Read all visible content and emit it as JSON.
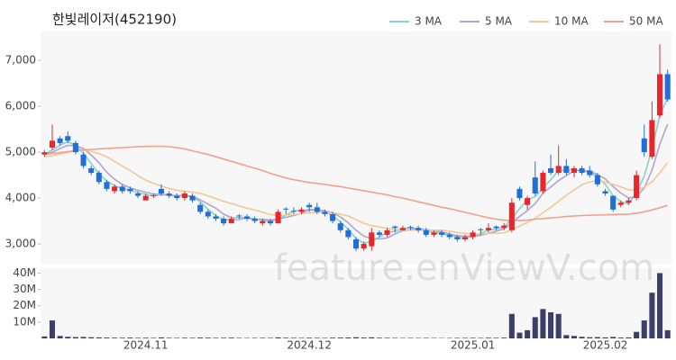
{
  "chart_data": {
    "type": "candlestick",
    "title": "한빛레이저(452190)",
    "watermark": "feature.enViewV.com",
    "categories": [
      null,
      null,
      null,
      null,
      null,
      null,
      null,
      null,
      null,
      null,
      null,
      null,
      null,
      "2024.11",
      null,
      null,
      null,
      null,
      null,
      null,
      null,
      null,
      null,
      null,
      null,
      null,
      null,
      null,
      null,
      null,
      null,
      null,
      null,
      null,
      "2024.12",
      null,
      null,
      null,
      null,
      null,
      null,
      null,
      null,
      null,
      null,
      null,
      null,
      null,
      null,
      null,
      null,
      null,
      null,
      null,
      null,
      "2025.01",
      null,
      null,
      null,
      null,
      null,
      null,
      null,
      null,
      null,
      null,
      null,
      null,
      null,
      null,
      null,
      null,
      "2025.02",
      null,
      null,
      null,
      null,
      null,
      null,
      null,
      null
    ],
    "up_color": "#e8262c",
    "down_color": "#1f6fd6",
    "ohlc": [
      [
        4950,
        5050,
        4900,
        5000
      ],
      [
        5100,
        5600,
        5050,
        5250
      ],
      [
        5300,
        5350,
        5150,
        5200
      ],
      [
        5350,
        5450,
        5200,
        5250
      ],
      [
        5200,
        5250,
        4950,
        5000
      ],
      [
        4950,
        5000,
        4650,
        4700
      ],
      [
        4650,
        4700,
        4500,
        4550
      ],
      [
        4550,
        4600,
        4300,
        4350
      ],
      [
        4350,
        4400,
        4150,
        4200
      ],
      [
        4150,
        4300,
        4100,
        4250
      ],
      [
        4250,
        4300,
        4100,
        4150
      ],
      [
        4200,
        4250,
        4100,
        4150
      ],
      [
        4100,
        4150,
        4000,
        4050
      ],
      [
        3950,
        4100,
        3950,
        4050
      ],
      [
        4050,
        4100,
        4000,
        4060
      ],
      [
        4200,
        4300,
        4050,
        4100
      ],
      [
        4100,
        4150,
        4000,
        4050
      ],
      [
        4050,
        4100,
        3950,
        4000
      ],
      [
        4000,
        4150,
        3950,
        4100
      ],
      [
        4050,
        4100,
        3900,
        3950
      ],
      [
        3850,
        3900,
        3650,
        3700
      ],
      [
        3700,
        3750,
        3550,
        3600
      ],
      [
        3600,
        3650,
        3500,
        3550
      ],
      [
        3550,
        3600,
        3400,
        3450
      ],
      [
        3450,
        3600,
        3450,
        3550
      ],
      [
        3620,
        3650,
        3550,
        3600
      ],
      [
        3600,
        3650,
        3500,
        3550
      ],
      [
        3550,
        3600,
        3450,
        3500
      ],
      [
        3450,
        3550,
        3400,
        3500
      ],
      [
        3500,
        3550,
        3400,
        3450
      ],
      [
        3450,
        3750,
        3450,
        3700
      ],
      [
        3770,
        3800,
        3650,
        3750
      ],
      [
        3720,
        3800,
        3650,
        3700
      ],
      [
        3700,
        3800,
        3650,
        3750
      ],
      [
        3850,
        3900,
        3700,
        3800
      ],
      [
        3800,
        3900,
        3650,
        3700
      ],
      [
        3700,
        3750,
        3600,
        3650
      ],
      [
        3650,
        3700,
        3450,
        3500
      ],
      [
        3450,
        3500,
        3250,
        3300
      ],
      [
        3300,
        3350,
        3100,
        3150
      ],
      [
        3100,
        3150,
        2850,
        2900
      ],
      [
        2900,
        3050,
        2850,
        3000
      ],
      [
        2950,
        3350,
        2850,
        3250
      ],
      [
        3250,
        3300,
        3150,
        3200
      ],
      [
        3200,
        3350,
        3150,
        3300
      ],
      [
        3380,
        3400,
        3250,
        3350
      ],
      [
        3300,
        3400,
        3300,
        3350
      ],
      [
        3370,
        3400,
        3300,
        3350
      ],
      [
        3350,
        3400,
        3250,
        3300
      ],
      [
        3300,
        3350,
        3150,
        3200
      ],
      [
        3200,
        3300,
        3150,
        3250
      ],
      [
        3250,
        3300,
        3150,
        3200
      ],
      [
        3200,
        3250,
        3100,
        3150
      ],
      [
        3150,
        3200,
        3050,
        3100
      ],
      [
        3100,
        3200,
        3050,
        3150
      ],
      [
        3150,
        3300,
        3100,
        3250
      ],
      [
        3320,
        3350,
        3200,
        3300
      ],
      [
        3300,
        3450,
        3250,
        3350
      ],
      [
        3380,
        3400,
        3300,
        3350
      ],
      [
        3350,
        3450,
        3300,
        3400
      ],
      [
        3300,
        4000,
        3250,
        3900
      ],
      [
        4200,
        4250,
        3950,
        4000
      ],
      [
        3850,
        4050,
        3750,
        4000
      ],
      [
        4450,
        4800,
        4050,
        4100
      ],
      [
        4150,
        4600,
        4100,
        4550
      ],
      [
        4650,
        4950,
        4500,
        4550
      ],
      [
        4550,
        5150,
        4500,
        4700
      ],
      [
        4700,
        4850,
        4500,
        4550
      ],
      [
        4550,
        4700,
        4450,
        4650
      ],
      [
        4650,
        4700,
        4500,
        4550
      ],
      [
        4600,
        4700,
        4450,
        4500
      ],
      [
        4500,
        4550,
        4250,
        4300
      ],
      [
        4150,
        4200,
        4050,
        4100
      ],
      [
        4050,
        4050,
        3700,
        3750
      ],
      [
        3850,
        3950,
        3800,
        3900
      ],
      [
        3900,
        4000,
        3850,
        3950
      ],
      [
        4000,
        4600,
        3950,
        4500
      ],
      [
        5300,
        5600,
        4900,
        5000
      ],
      [
        4900,
        6100,
        4850,
        5700
      ],
      [
        5800,
        7350,
        5750,
        6700
      ],
      [
        6700,
        6800,
        6100,
        6150
      ]
    ],
    "series": [
      {
        "name": "3 MA",
        "color": "#84d2c8",
        "values": [
          4950,
          5050,
          5150,
          5230,
          5150,
          4980,
          4750,
          4530,
          4370,
          4270,
          4200,
          4180,
          4120,
          4080,
          4050,
          4070,
          4070,
          4050,
          4050,
          4020,
          3920,
          3750,
          3620,
          3530,
          3520,
          3530,
          3570,
          3550,
          3520,
          3480,
          3550,
          3630,
          3720,
          3730,
          3750,
          3750,
          3720,
          3620,
          3480,
          3320,
          3120,
          3020,
          3050,
          3150,
          3250,
          3280,
          3330,
          3350,
          3330,
          3280,
          3250,
          3220,
          3200,
          3150,
          3130,
          3170,
          3230,
          3300,
          3330,
          3370,
          3550,
          3770,
          3970,
          4030,
          4220,
          4400,
          4600,
          4600,
          4630,
          4580,
          4570,
          4450,
          4300,
          4050,
          3920,
          3870,
          4120,
          4480,
          5070,
          5800,
          6180
        ]
      },
      {
        "name": "5 MA",
        "color": "#b5a1cf",
        "values": [
          4950,
          5000,
          5080,
          5150,
          5140,
          5080,
          4940,
          4770,
          4560,
          4410,
          4300,
          4220,
          4170,
          4130,
          4090,
          4080,
          4060,
          4050,
          4060,
          4040,
          3960,
          3870,
          3780,
          3650,
          3570,
          3570,
          3570,
          3530,
          3540,
          3520,
          3540,
          3580,
          3620,
          3670,
          3740,
          3740,
          3720,
          3680,
          3590,
          3460,
          3300,
          3170,
          3120,
          3110,
          3130,
          3220,
          3290,
          3310,
          3330,
          3310,
          3290,
          3260,
          3220,
          3180,
          3170,
          3170,
          3190,
          3230,
          3280,
          3330,
          3460,
          3600,
          3730,
          3880,
          4110,
          4240,
          4380,
          4490,
          4600,
          4600,
          4590,
          4510,
          4420,
          4250,
          4110,
          4000,
          4040,
          4220,
          4610,
          5170,
          5610
        ]
      },
      {
        "name": "10 MA",
        "color": "#f3c796",
        "values": [
          4900,
          4920,
          4960,
          5000,
          5030,
          5040,
          5020,
          4970,
          4900,
          4800,
          4700,
          4600,
          4490,
          4390,
          4320,
          4260,
          4210,
          4170,
          4150,
          4130,
          4100,
          4050,
          3990,
          3930,
          3880,
          3830,
          3780,
          3740,
          3690,
          3640,
          3620,
          3630,
          3640,
          3660,
          3680,
          3690,
          3690,
          3680,
          3650,
          3610,
          3530,
          3450,
          3400,
          3370,
          3340,
          3320,
          3310,
          3300,
          3300,
          3300,
          3300,
          3300,
          3280,
          3250,
          3230,
          3220,
          3220,
          3230,
          3230,
          3240,
          3310,
          3390,
          3470,
          3560,
          3680,
          3800,
          3930,
          4060,
          4180,
          4290,
          4350,
          4380,
          4350,
          4300,
          4240,
          4180,
          4180,
          4240,
          4350,
          4550,
          4770
        ]
      },
      {
        "name": "50 MA",
        "color": "#f2a08a",
        "values": [
          4950,
          4970,
          4990,
          5010,
          5030,
          5050,
          5060,
          5070,
          5080,
          5090,
          5100,
          5110,
          5120,
          5125,
          5130,
          5130,
          5120,
          5100,
          5070,
          5030,
          4990,
          4950,
          4900,
          4850,
          4800,
          4750,
          4700,
          4650,
          4600,
          4540,
          4490,
          4440,
          4400,
          4370,
          4340,
          4320,
          4300,
          4270,
          4250,
          4220,
          4190,
          4160,
          4130,
          4100,
          4070,
          4030,
          4000,
          3960,
          3920,
          3880,
          3840,
          3800,
          3770,
          3730,
          3690,
          3650,
          3610,
          3570,
          3540,
          3520,
          3510,
          3510,
          3520,
          3540,
          3550,
          3570,
          3580,
          3600,
          3610,
          3620,
          3625,
          3630,
          3635,
          3640,
          3645,
          3650,
          3670,
          3700,
          3740,
          3790,
          3840
        ]
      }
    ],
    "ylim": [
      2570,
      7630
    ],
    "yticks": [
      {
        "value": 3000,
        "label": "3,000"
      },
      {
        "value": 4000,
        "label": "4,000"
      },
      {
        "value": 5000,
        "label": "5,000"
      },
      {
        "value": 6000,
        "label": "6,000"
      },
      {
        "value": 7000,
        "label": "7,000"
      }
    ],
    "volume": {
      "color": "#3d3f6b",
      "ylim": [
        0,
        43000000
      ],
      "yticks": [
        {
          "value": 10000000,
          "label": "10M"
        },
        {
          "value": 20000000,
          "label": "20M"
        },
        {
          "value": 30000000,
          "label": "30M"
        },
        {
          "value": 40000000,
          "label": "40M"
        }
      ],
      "values": [
        1200000,
        11000000,
        1500000,
        1000000,
        800000,
        900000,
        700000,
        600000,
        500000,
        450000,
        400000,
        500000,
        350000,
        400000,
        300000,
        600000,
        350000,
        300000,
        400000,
        350000,
        500000,
        450000,
        350000,
        400000,
        450000,
        300000,
        250000,
        300000,
        350000,
        300000,
        600000,
        400000,
        350000,
        300000,
        400000,
        350000,
        300000,
        450000,
        500000,
        550000,
        700000,
        500000,
        650000,
        400000,
        350000,
        300000,
        250000,
        300000,
        250000,
        300000,
        250000,
        200000,
        250000,
        300000,
        300000,
        350000,
        300000,
        400000,
        350000,
        450000,
        15000000,
        3500000,
        5000000,
        13000000,
        18000000,
        16000000,
        15000000,
        2000000,
        1500000,
        1000000,
        700000,
        800000,
        600000,
        900000,
        500000,
        600000,
        4000000,
        11000000,
        28000000,
        40000000,
        5000000
      ]
    }
  }
}
